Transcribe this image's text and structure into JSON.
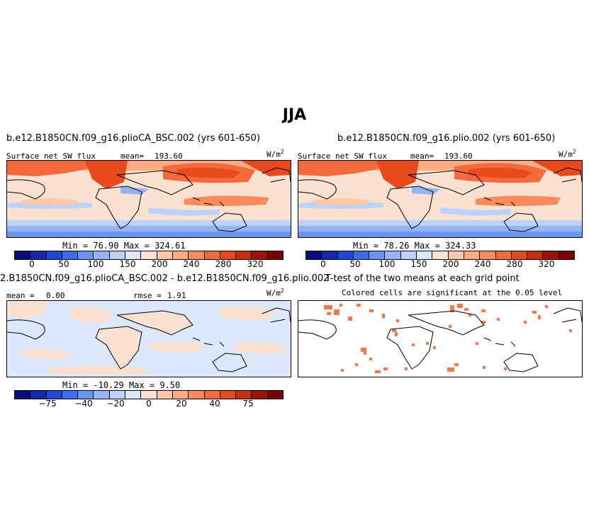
{
  "title": "JJA",
  "panels": [
    {
      "id": "plioCA",
      "title": "b.e12.B1850CN.f09_g16.plioCA_BSC.002 (yrs 601-650)",
      "variable": "Surface net SW flux",
      "mean_label": "mean=",
      "mean": "193.60",
      "units_base": "W/m",
      "units_exp": "2",
      "min_label": "Min =",
      "min": "76.90",
      "max_label": "Max =",
      "max": "324.61"
    },
    {
      "id": "plio",
      "title": "b.e12.B1850CN.f09_g16.plio.002 (yrs 601-650)",
      "variable": "Surface net SW flux",
      "mean_label": "mean=",
      "mean": "193.60",
      "units_base": "W/m",
      "units_exp": "2",
      "min_label": "Min =",
      "min": "78.26",
      "max_label": "Max =",
      "max": "324.33"
    },
    {
      "id": "diff",
      "title": "2.B1850CN.f09_g16.plioCA_BSC.002 - b.e12.B1850CN.f09_g16.plio.002",
      "mean_label": "mean =",
      "mean": "0.00",
      "rmse_label": "rmse =",
      "rmse": "1.91",
      "units_base": "W/m",
      "units_exp": "2",
      "min_label": "Min =",
      "min": "-10.29",
      "max_label": "Max =",
      "max": "9.50"
    },
    {
      "id": "ttest",
      "title": "T-test of the two means at each grid point",
      "subtitle": "Colored cells are significant at the 0.05 level"
    }
  ],
  "colorbar_full": {
    "colors": [
      "#0a0a7a",
      "#1428a8",
      "#2048d8",
      "#3c6cf0",
      "#6a94f4",
      "#94b4f8",
      "#bcd2fa",
      "#dce8fb",
      "#fbe2d0",
      "#fcc8a8",
      "#fcac80",
      "#fa8c5c",
      "#f46a3c",
      "#e84a1e",
      "#c82c0c",
      "#9c1406",
      "#780000"
    ],
    "ticks": [
      "0",
      "50",
      "100",
      "150",
      "200",
      "240",
      "280",
      "320"
    ]
  },
  "colorbar_diff": {
    "colors": [
      "#0a0a7a",
      "#1428a8",
      "#2048d8",
      "#3c6cf0",
      "#6a94f4",
      "#94b4f8",
      "#bcd2fa",
      "#dce8fb",
      "#fbe2d0",
      "#fcc8a8",
      "#fcac80",
      "#fa8c5c",
      "#f46a3c",
      "#e84a1e",
      "#c82c0c",
      "#9c1406",
      "#780000"
    ],
    "ticks": [
      "−75",
      "−40",
      "−20",
      "0",
      "20",
      "40",
      "75"
    ]
  },
  "significant_color": "#f4784a"
}
